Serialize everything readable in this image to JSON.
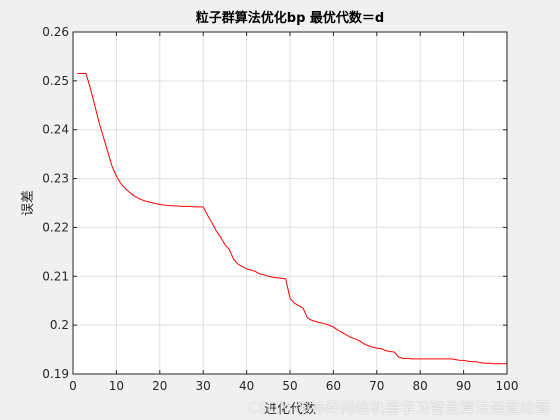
{
  "chart_data": {
    "type": "line",
    "title": "粒子群算法优化bp 最优代数＝d",
    "xlabel": "进化代数",
    "ylabel": "误差",
    "xlim": [
      0,
      100
    ],
    "ylim": [
      0.19,
      0.26
    ],
    "xticks": [
      0,
      10,
      20,
      30,
      40,
      50,
      60,
      70,
      80,
      90,
      100
    ],
    "yticks": [
      0.19,
      0.2,
      0.21,
      0.22,
      0.23,
      0.24,
      0.25,
      0.26
    ],
    "xtick_labels": [
      "0",
      "10",
      "20",
      "30",
      "40",
      "50",
      "60",
      "70",
      "80",
      "90",
      "100"
    ],
    "ytick_labels": [
      "0.19",
      "0.2",
      "0.21",
      "0.22",
      "0.23",
      "0.24",
      "0.25",
      "0.26"
    ],
    "grid": true,
    "series": [
      {
        "color": "#ff0000",
        "x": [
          1,
          2,
          3,
          4,
          5,
          6,
          7,
          8,
          9,
          10,
          11,
          12,
          13,
          14,
          15,
          16,
          17,
          18,
          19,
          20,
          21,
          22,
          23,
          24,
          25,
          26,
          27,
          28,
          29,
          30,
          31,
          32,
          33,
          34,
          35,
          36,
          37,
          38,
          39,
          40,
          41,
          42,
          43,
          44,
          45,
          46,
          47,
          48,
          49,
          50,
          51,
          52,
          53,
          54,
          55,
          56,
          57,
          58,
          59,
          60,
          61,
          62,
          63,
          64,
          65,
          66,
          67,
          68,
          69,
          70,
          71,
          72,
          73,
          74,
          75,
          76,
          77,
          78,
          79,
          80,
          81,
          82,
          83,
          84,
          85,
          86,
          87,
          88,
          89,
          90,
          91,
          92,
          93,
          94,
          95,
          96,
          97,
          98,
          99,
          100
        ],
        "y": [
          0.2515,
          0.2515,
          0.2515,
          0.2485,
          0.245,
          0.2415,
          0.2385,
          0.2355,
          0.2325,
          0.2305,
          0.229,
          0.228,
          0.2272,
          0.2265,
          0.226,
          0.2256,
          0.2253,
          0.2251,
          0.2249,
          0.2247,
          0.2246,
          0.2245,
          0.2244,
          0.2244,
          0.2243,
          0.2243,
          0.2243,
          0.2242,
          0.2242,
          0.2242,
          0.2225,
          0.221,
          0.2193,
          0.218,
          0.2165,
          0.2155,
          0.2135,
          0.2125,
          0.212,
          0.2115,
          0.2113,
          0.211,
          0.2105,
          0.2103,
          0.21,
          0.2098,
          0.2097,
          0.2096,
          0.2095,
          0.2055,
          0.2045,
          0.204,
          0.2035,
          0.2015,
          0.201,
          0.2007,
          0.2005,
          0.2003,
          0.2,
          0.1996,
          0.199,
          0.1985,
          0.198,
          0.1975,
          0.1972,
          0.1968,
          0.1962,
          0.1958,
          0.1955,
          0.1953,
          0.1952,
          0.1948,
          0.1946,
          0.1945,
          0.1935,
          0.1932,
          0.1932,
          0.1931,
          0.1931,
          0.1931,
          0.1931,
          0.1931,
          0.1931,
          0.1931,
          0.1931,
          0.1931,
          0.1931,
          0.193,
          0.1928,
          0.1928,
          0.1926,
          0.1925,
          0.1925,
          0.1923,
          0.1922,
          0.1922,
          0.1921,
          0.1921,
          0.1921,
          0.1921
        ]
      }
    ]
  },
  "watermark": "CSDN @神经网络机器学习智能算法画图绘图"
}
